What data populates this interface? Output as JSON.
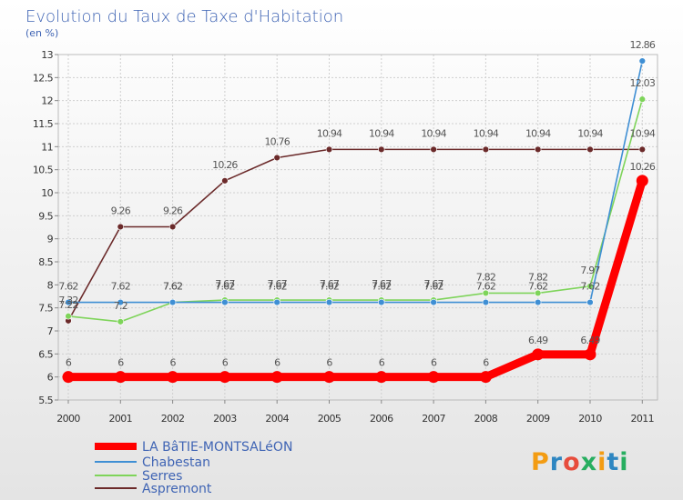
{
  "chart_data": {
    "type": "line",
    "title": "Evolution du Taux de Taxe d'Habitation",
    "subtitle": "(en %)",
    "xlabel": "",
    "ylabel": "",
    "categories": [
      "2000",
      "2001",
      "2002",
      "2003",
      "2004",
      "2005",
      "2006",
      "2007",
      "2008",
      "2009",
      "2010",
      "2011"
    ],
    "ylim": [
      5.5,
      13
    ],
    "yticks": [
      "5.5",
      "6",
      "6.5",
      "7",
      "7.5",
      "8",
      "8.5",
      "9",
      "9.5",
      "10",
      "10.5",
      "11",
      "11.5",
      "12",
      "12.5",
      "13"
    ],
    "grid": true,
    "legend_position": "bottom-left",
    "series": [
      {
        "name": "LA BâTIE-MONTSALéON",
        "color": "#ff0000",
        "values": [
          6,
          6,
          6,
          6,
          6,
          6,
          6,
          6,
          6,
          6.49,
          6.49,
          10.26
        ],
        "labels": [
          "6",
          "6",
          "6",
          "6",
          "6",
          "6",
          "6",
          "6",
          "6",
          "6.49",
          "6.49",
          "10.26"
        ]
      },
      {
        "name": "Chabestan",
        "color": "#3f8fd4",
        "values": [
          7.62,
          7.62,
          7.62,
          7.62,
          7.62,
          7.62,
          7.62,
          7.62,
          7.62,
          7.62,
          7.62,
          12.86
        ],
        "labels": [
          "7.62",
          "7.62",
          "7.62",
          "7.62",
          "7.62",
          "7.62",
          "7.62",
          "7.62",
          "7.62",
          "7.62",
          "7.62",
          "12.86"
        ]
      },
      {
        "name": "Serres",
        "color": "#7ed45a",
        "values": [
          7.32,
          7.2,
          7.62,
          7.67,
          7.67,
          7.67,
          7.67,
          7.67,
          7.82,
          7.82,
          7.97,
          12.03
        ],
        "labels": [
          "7.32",
          "7.2",
          "7.62",
          "7.67",
          "7.67",
          "7.67",
          "7.67",
          "7.67",
          "7.82",
          "7.82",
          "7.97",
          "12.03"
        ]
      },
      {
        "name": "Aspremont",
        "color": "#6b2a2a",
        "values": [
          7.22,
          9.26,
          9.26,
          10.26,
          10.76,
          10.94,
          10.94,
          10.94,
          10.94,
          10.94,
          10.94,
          10.94
        ],
        "labels": [
          "7.22",
          "9.26",
          "9.26",
          "10.26",
          "10.76",
          "10.94",
          "10.94",
          "10.94",
          "10.94",
          "10.94",
          "10.94",
          "10.94"
        ]
      }
    ]
  },
  "logo": {
    "text": "Proxiti"
  }
}
